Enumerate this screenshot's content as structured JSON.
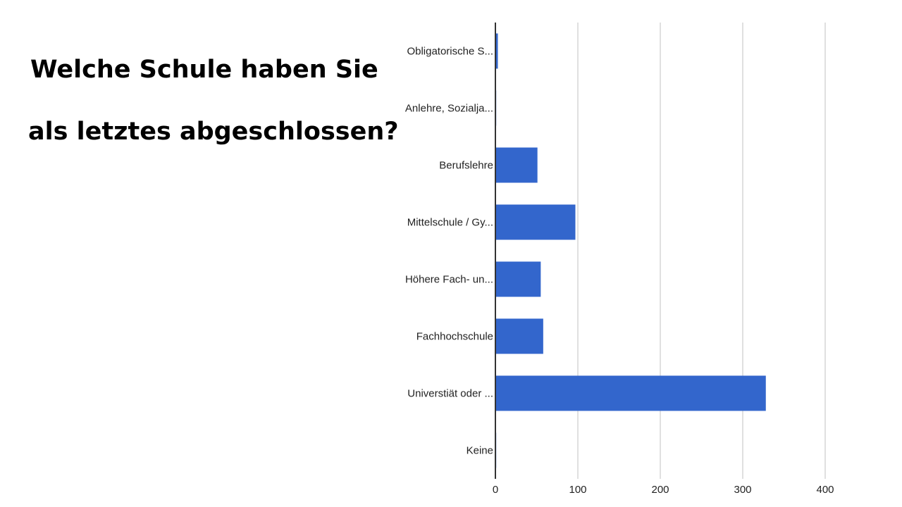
{
  "slide": {
    "title_lines": [
      "Welche Schule haben Sie",
      "als letztes abgeschlossen?"
    ]
  },
  "chart_data": {
    "type": "bar",
    "orientation": "horizontal",
    "categories": [
      "Obligatorische S...",
      "Anlehre, Sozialja...",
      "Berufslehre",
      "Mittelschule / Gy...",
      "Höhere Fach- un...",
      "Fachhochschule",
      "Universtiät oder ...",
      "Keine"
    ],
    "values": [
      3,
      1,
      51,
      97,
      55,
      58,
      328,
      1
    ],
    "xlim": [
      0,
      400
    ],
    "xticks": [
      0,
      100,
      200,
      300,
      400
    ],
    "grid": true,
    "bar_color": "#3366cc"
  }
}
